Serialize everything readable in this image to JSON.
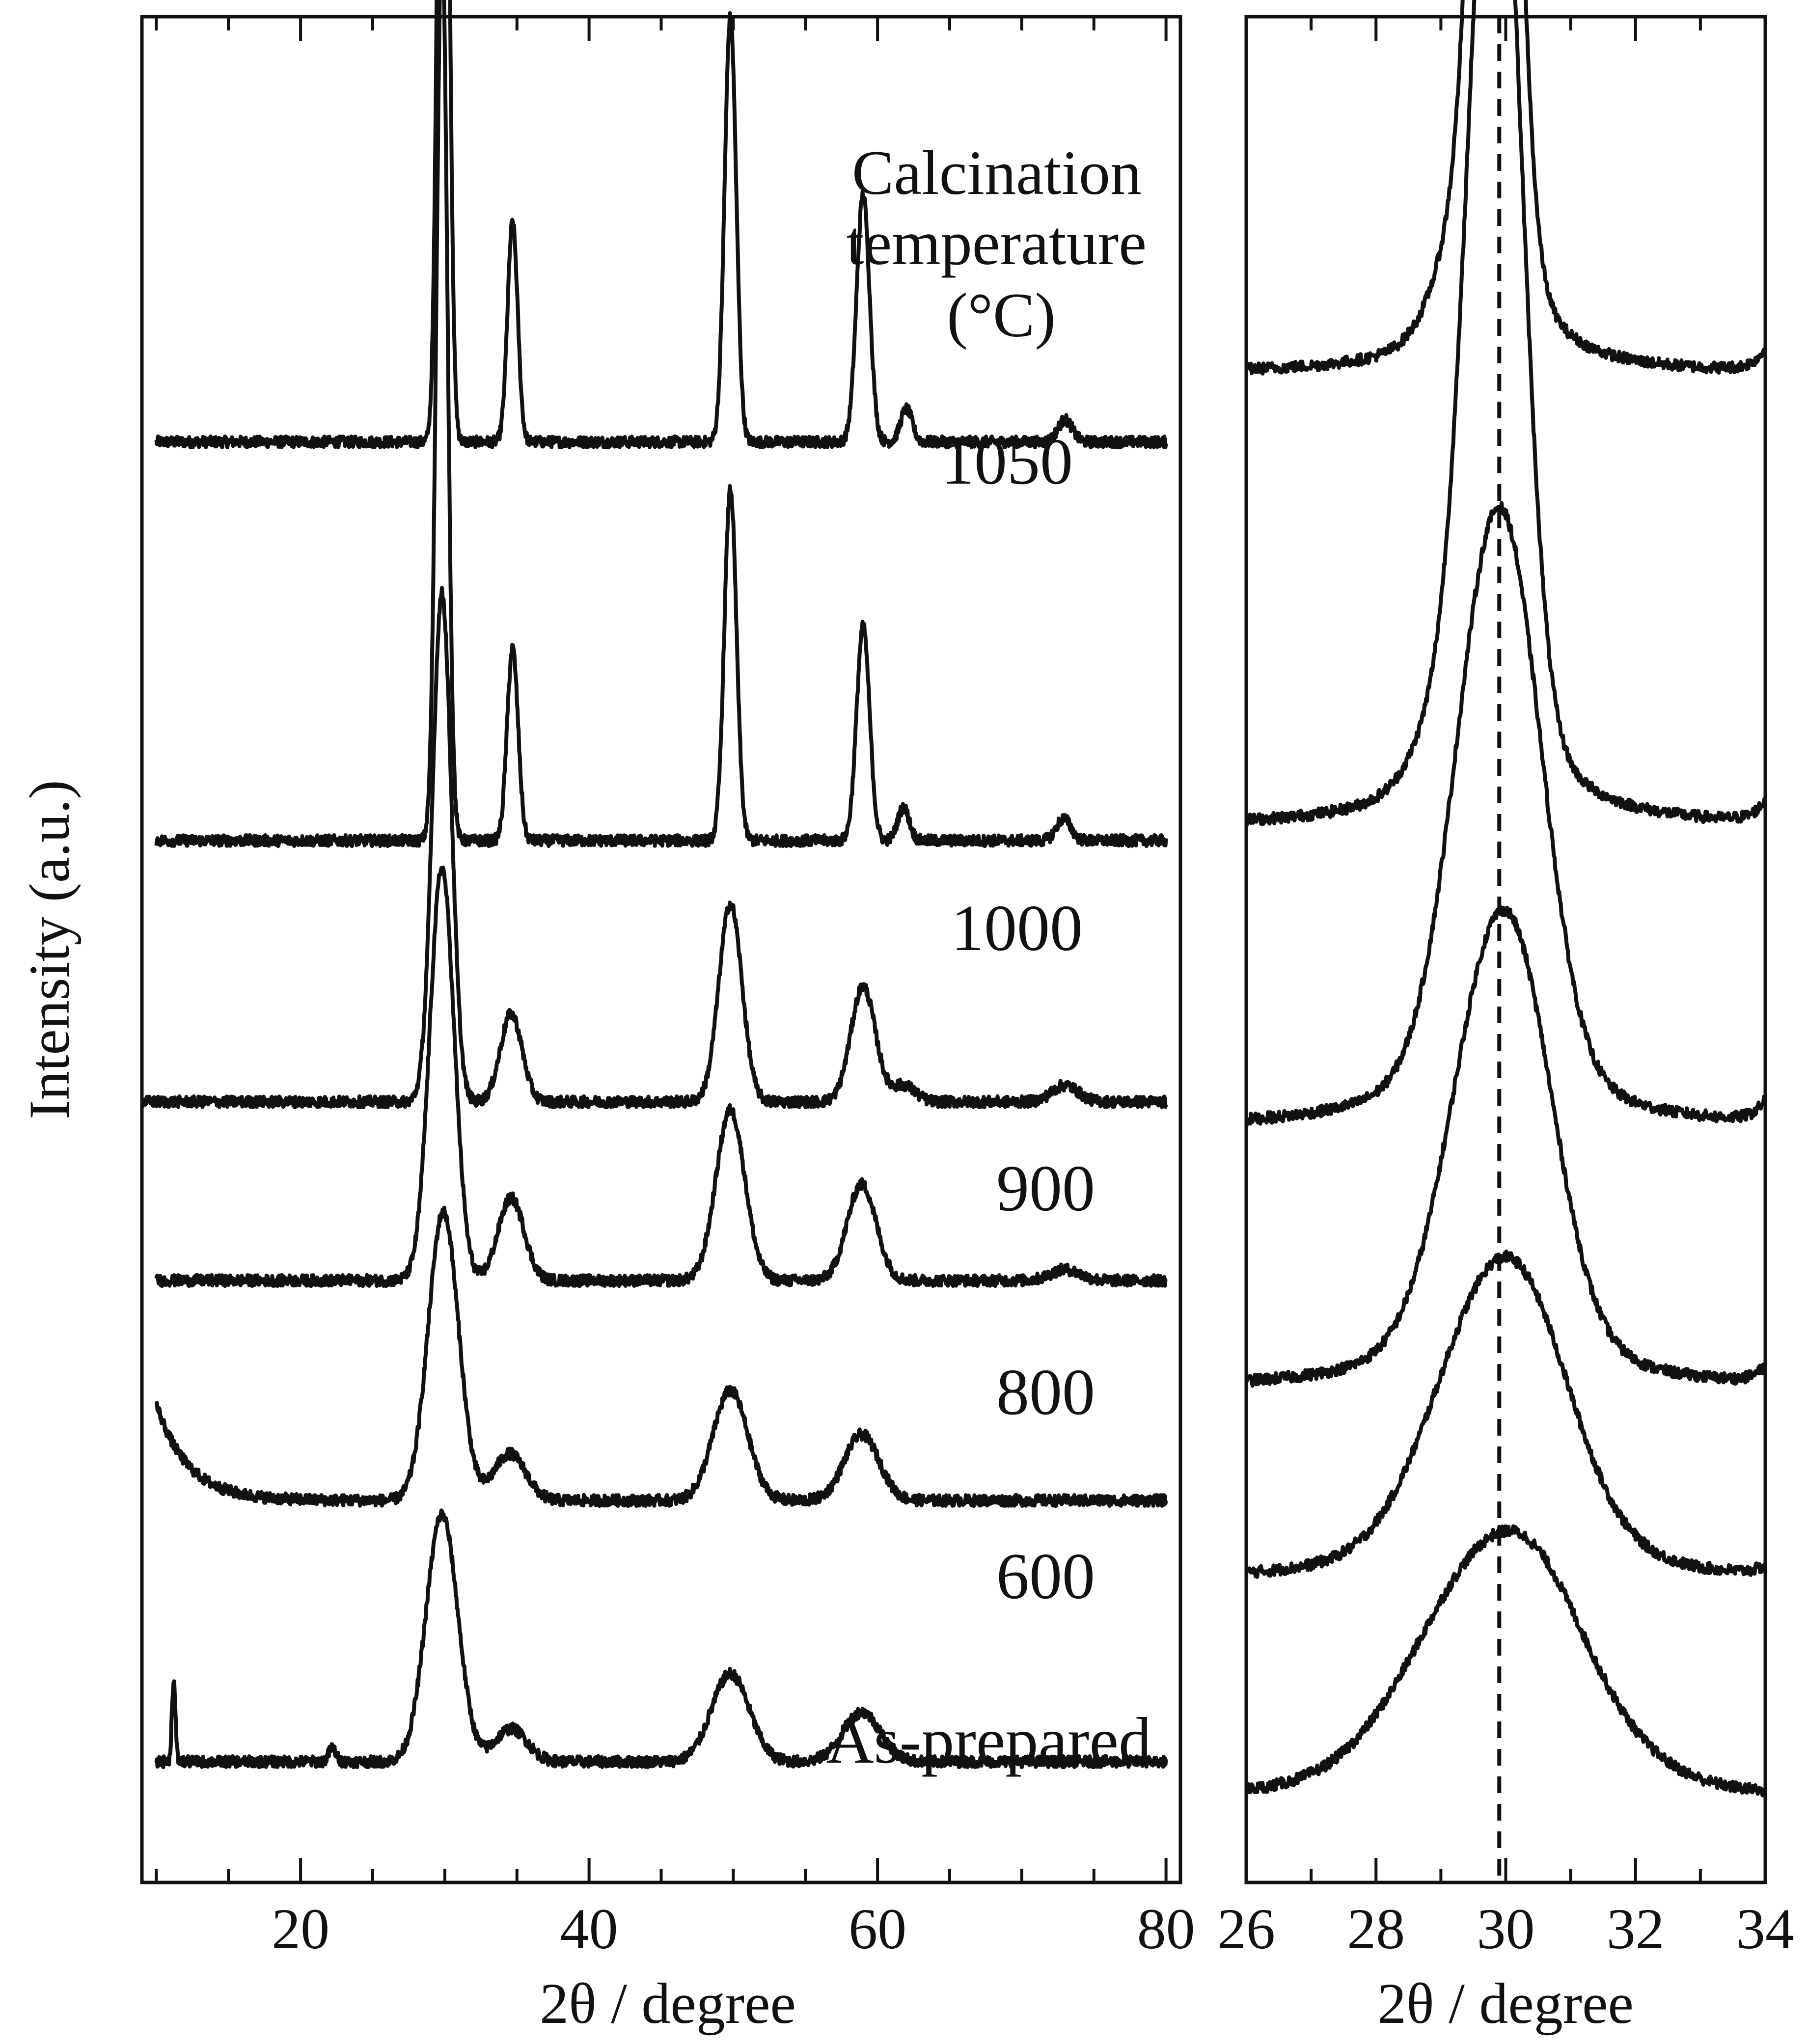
{
  "chart_data": [
    {
      "type": "line",
      "panel": "wide-range",
      "title": "",
      "xlabel": "2θ / degree",
      "ylabel": "Intensity (a.u.)",
      "xlim": [
        9,
        81
      ],
      "x_ticks": [
        20,
        40,
        60,
        80
      ],
      "x_minor_tick_step": 5,
      "y_ticks": "none (arbitrary units, traces vertically offset)",
      "grid": false,
      "legend_title": [
        "Calcination",
        "temperature",
        "(°C)"
      ],
      "series": [
        {
          "name": "1050",
          "label": "1050",
          "offset": 5.0,
          "x_range": [
            10,
            80
          ],
          "baseline": 0.0,
          "peaks": [
            [
              29.9,
              3.9,
              0.35
            ],
            [
              34.7,
              0.8,
              0.35
            ],
            [
              49.8,
              1.55,
              0.4
            ],
            [
              59.0,
              0.9,
              0.45
            ],
            [
              62.0,
              0.12,
              0.4
            ],
            [
              73.0,
              0.08,
              0.5
            ]
          ],
          "background_slope": -0.12,
          "noise": 0.02
        },
        {
          "name": "1000",
          "label": "1000",
          "offset": 3.55,
          "x_range": [
            10,
            80
          ],
          "baseline": 0.0,
          "peaks": [
            [
              29.8,
              3.3,
              0.38
            ],
            [
              34.7,
              0.7,
              0.38
            ],
            [
              49.8,
              1.28,
              0.42
            ],
            [
              59.0,
              0.78,
              0.45
            ],
            [
              61.8,
              0.12,
              0.4
            ],
            [
              72.9,
              0.08,
              0.5
            ]
          ],
          "background_slope": -0.1,
          "noise": 0.02
        },
        {
          "name": "900",
          "label": "900",
          "offset": 2.6,
          "x_range": [
            9,
            80
          ],
          "baseline": 0.0,
          "peaks": [
            [
              29.8,
              1.85,
              0.65
            ],
            [
              34.6,
              0.32,
              0.75
            ],
            [
              49.8,
              0.72,
              0.8
            ],
            [
              59.0,
              0.42,
              0.85
            ],
            [
              61.8,
              0.06,
              0.8
            ],
            [
              73.0,
              0.06,
              0.9
            ]
          ],
          "background_slope": -0.05,
          "noise": 0.02
        },
        {
          "name": "800",
          "label": "800",
          "offset": 1.95,
          "x_range": [
            10,
            80
          ],
          "baseline": 0.0,
          "peaks": [
            [
              29.8,
              1.5,
              0.85
            ],
            [
              34.6,
              0.3,
              0.9
            ],
            [
              49.8,
              0.62,
              1.0
            ],
            [
              58.9,
              0.35,
              1.0
            ],
            [
              73.0,
              0.04,
              1.0
            ]
          ],
          "background_slope": -0.04,
          "noise": 0.02
        },
        {
          "name": "600",
          "label": "600",
          "offset": 1.15,
          "x_range": [
            10,
            80
          ],
          "baseline": 0.0,
          "peaks": [
            [
              29.9,
              1.05,
              1.05
            ],
            [
              34.5,
              0.17,
              1.1
            ],
            [
              49.8,
              0.4,
              1.2
            ],
            [
              58.9,
              0.24,
              1.2
            ]
          ],
          "background_slope": -0.05,
          "low_angle_rise": 0.35,
          "noise": 0.02
        },
        {
          "name": "As-prepared",
          "label": "As-prepared",
          "offset": 0.2,
          "x_range": [
            10,
            80
          ],
          "baseline": 0.0,
          "peaks": [
            [
              11.2,
              0.3,
              0.12
            ],
            [
              22.2,
              0.05,
              0.25
            ],
            [
              29.8,
              0.9,
              1.1
            ],
            [
              34.6,
              0.12,
              1.1
            ],
            [
              49.8,
              0.32,
              1.3
            ],
            [
              58.9,
              0.18,
              1.3
            ]
          ],
          "background_slope": -0.02,
          "noise": 0.02
        }
      ]
    },
    {
      "type": "line",
      "panel": "zoom",
      "title": "",
      "xlabel": "2θ / degree",
      "ylabel": "",
      "xlim": [
        26,
        34
      ],
      "x_ticks": [
        26,
        28,
        30,
        32,
        34
      ],
      "x_minor_tick_step": 1,
      "grid": false,
      "reference_line": {
        "x": 29.9,
        "style": "dashed"
      },
      "series": [
        {
          "name": "1050",
          "offset": 5.25,
          "peak_center": 29.85,
          "peak_height": 3.45,
          "peak_width": 0.28,
          "shoulder": [
            29.45,
            0.35,
            0.45
          ],
          "edge_rise": 0.08,
          "noise": 0.02
        },
        {
          "name": "1000",
          "offset": 3.6,
          "peak_center": 29.85,
          "peak_height": 3.15,
          "peak_width": 0.38,
          "shoulder": [
            29.45,
            0.4,
            0.55
          ],
          "edge_rise": 0.08,
          "noise": 0.02
        },
        {
          "name": "900",
          "offset": 2.5,
          "peak_center": 29.85,
          "peak_height": 1.8,
          "peak_width": 0.62,
          "shoulder": [
            30.3,
            0.2,
            0.5
          ],
          "edge_rise": 0.08,
          "noise": 0.02
        },
        {
          "name": "800",
          "offset": 1.55,
          "peak_center": 29.9,
          "peak_height": 1.4,
          "peak_width": 0.72,
          "shoulder": [
            30.4,
            0.15,
            0.5
          ],
          "edge_rise": 0.06,
          "noise": 0.02
        },
        {
          "name": "600",
          "offset": 0.85,
          "peak_center": 29.9,
          "peak_height": 0.95,
          "peak_width": 0.95,
          "shoulder": [
            30.5,
            0.1,
            0.6
          ],
          "edge_rise": 0.03,
          "noise": 0.02
        },
        {
          "name": "As-prepared",
          "offset": 0.05,
          "peak_center": 29.9,
          "peak_height": 0.8,
          "peak_width": 1.2,
          "shoulder": [
            30.6,
            0.08,
            0.6
          ],
          "edge_rise": 0.0,
          "noise": 0.02
        }
      ]
    }
  ]
}
